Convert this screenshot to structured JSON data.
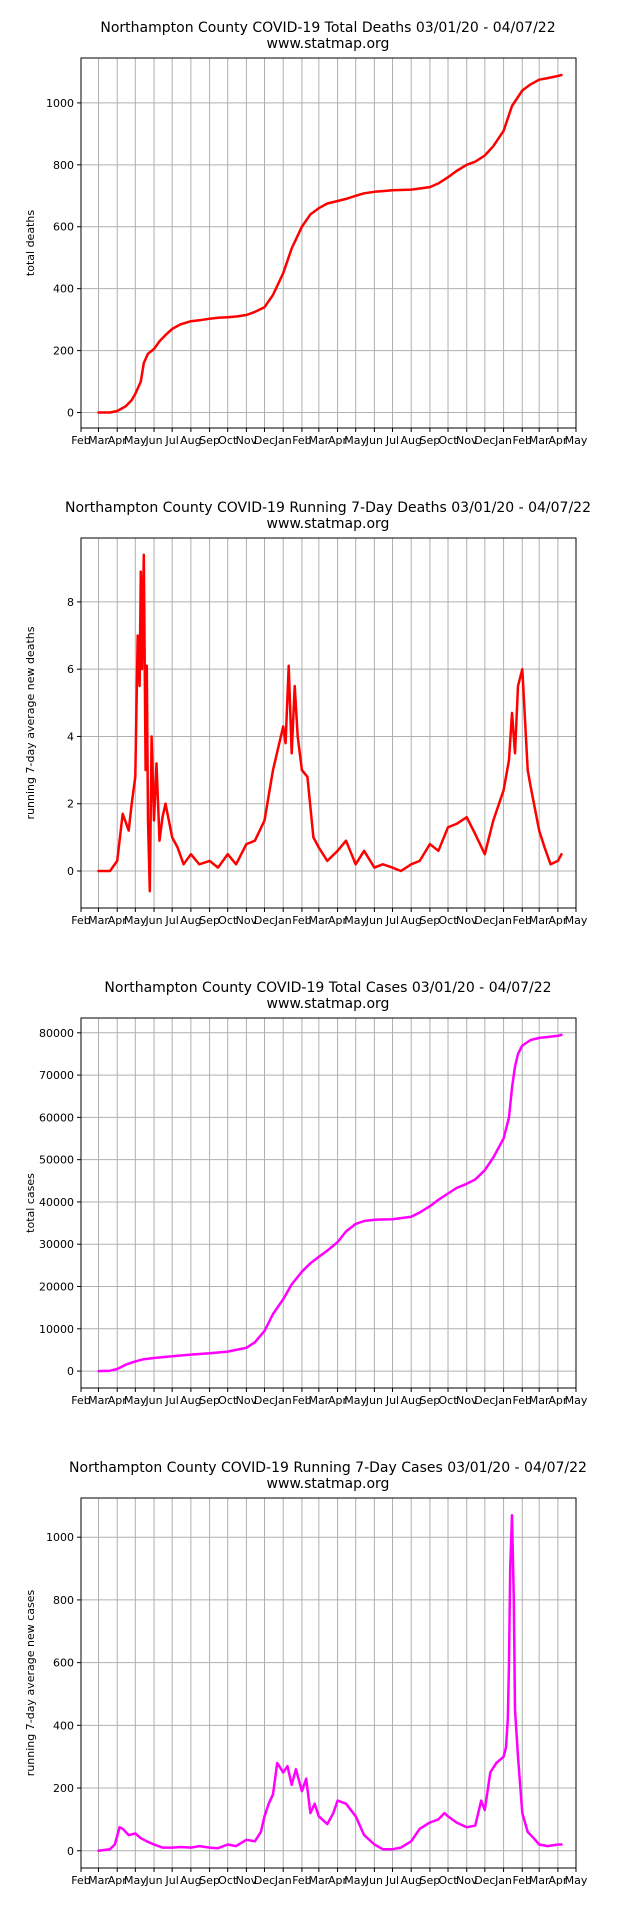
{
  "chart_data": [
    {
      "type": "line",
      "title": "Northampton County COVID-19 Total Deaths 03/01/20 - 04/07/22",
      "subtitle": "www.statmap.org",
      "xlabel": "",
      "ylabel": "total deaths",
      "color": "#ff0000",
      "grid": true,
      "xlim": [
        "2020-02-01",
        "2022-05-01"
      ],
      "ylim": [
        -50,
        1145
      ],
      "yticks": [
        0,
        200,
        400,
        600,
        800,
        1000
      ],
      "xticks": [
        "Feb",
        "Mar",
        "Apr",
        "May",
        "Jun",
        "Jul",
        "Aug",
        "Sep",
        "Oct",
        "Nov",
        "Dec",
        "Jan",
        "Feb",
        "Mar",
        "Apr",
        "May",
        "Jun",
        "Jul",
        "Aug",
        "Sep",
        "Oct",
        "Nov",
        "Dec",
        "Jan",
        "Feb",
        "Mar",
        "Apr",
        "May"
      ],
      "series": [
        {
          "x": [
            "2020-03-01",
            "2020-03-20",
            "2020-04-01",
            "2020-04-15",
            "2020-04-25",
            "2020-05-01",
            "2020-05-10",
            "2020-05-15",
            "2020-05-22",
            "2020-06-01",
            "2020-06-10",
            "2020-06-20",
            "2020-07-01",
            "2020-07-15",
            "2020-08-01",
            "2020-08-15",
            "2020-09-01",
            "2020-09-15",
            "2020-10-01",
            "2020-10-15",
            "2020-11-01",
            "2020-11-15",
            "2020-12-01",
            "2020-12-15",
            "2021-01-01",
            "2021-01-15",
            "2021-02-01",
            "2021-02-15",
            "2021-03-01",
            "2021-03-15",
            "2021-04-01",
            "2021-04-15",
            "2021-05-01",
            "2021-05-15",
            "2021-06-01",
            "2021-06-15",
            "2021-07-01",
            "2021-08-01",
            "2021-09-01",
            "2021-09-15",
            "2021-10-01",
            "2021-10-15",
            "2021-11-01",
            "2021-11-15",
            "2021-12-01",
            "2021-12-15",
            "2022-01-01",
            "2022-01-15",
            "2022-02-01",
            "2022-02-15",
            "2022-03-01",
            "2022-03-15",
            "2022-04-01",
            "2022-04-07"
          ],
          "y": [
            0,
            0,
            5,
            20,
            40,
            60,
            100,
            160,
            190,
            205,
            230,
            250,
            270,
            285,
            295,
            298,
            303,
            306,
            308,
            310,
            315,
            325,
            340,
            380,
            450,
            530,
            600,
            640,
            660,
            675,
            683,
            690,
            700,
            708,
            713,
            715,
            718,
            720,
            728,
            740,
            760,
            780,
            800,
            810,
            830,
            860,
            910,
            990,
            1040,
            1060,
            1075,
            1080,
            1087,
            1090
          ]
        }
      ]
    },
    {
      "type": "line",
      "title": "Northampton County COVID-19 Running 7-Day Deaths 03/01/20 - 04/07/22",
      "subtitle": "www.statmap.org",
      "xlabel": "",
      "ylabel": "running 7-day average new deaths",
      "color": "#ff0000",
      "grid": true,
      "xlim": [
        "2020-02-01",
        "2022-05-01"
      ],
      "ylim": [
        -1.1,
        9.9
      ],
      "yticks": [
        0,
        2,
        4,
        6,
        8
      ],
      "xticks": [
        "Feb",
        "Mar",
        "Apr",
        "May",
        "Jun",
        "Jul",
        "Aug",
        "Sep",
        "Oct",
        "Nov",
        "Dec",
        "Jan",
        "Feb",
        "Mar",
        "Apr",
        "May",
        "Jun",
        "Jul",
        "Aug",
        "Sep",
        "Oct",
        "Nov",
        "Dec",
        "Jan",
        "Feb",
        "Mar",
        "Apr",
        "May"
      ],
      "series": [
        {
          "x": [
            "2020-03-01",
            "2020-03-20",
            "2020-04-01",
            "2020-04-10",
            "2020-04-20",
            "2020-04-25",
            "2020-05-01",
            "2020-05-05",
            "2020-05-08",
            "2020-05-10",
            "2020-05-12",
            "2020-05-15",
            "2020-05-18",
            "2020-05-20",
            "2020-05-22",
            "2020-05-25",
            "2020-05-28",
            "2020-06-01",
            "2020-06-05",
            "2020-06-10",
            "2020-06-15",
            "2020-06-20",
            "2020-07-01",
            "2020-07-10",
            "2020-07-20",
            "2020-08-01",
            "2020-08-15",
            "2020-09-01",
            "2020-09-15",
            "2020-10-01",
            "2020-10-15",
            "2020-11-01",
            "2020-11-15",
            "2020-12-01",
            "2020-12-15",
            "2021-01-01",
            "2021-01-05",
            "2021-01-10",
            "2021-01-15",
            "2021-01-20",
            "2021-01-25",
            "2021-02-01",
            "2021-02-10",
            "2021-02-20",
            "2021-03-01",
            "2021-03-15",
            "2021-04-01",
            "2021-04-15",
            "2021-05-01",
            "2021-05-15",
            "2021-06-01",
            "2021-06-15",
            "2021-07-01",
            "2021-07-15",
            "2021-08-01",
            "2021-08-15",
            "2021-09-01",
            "2021-09-15",
            "2021-10-01",
            "2021-10-15",
            "2021-11-01",
            "2021-11-15",
            "2021-12-01",
            "2021-12-15",
            "2022-01-01",
            "2022-01-10",
            "2022-01-15",
            "2022-01-20",
            "2022-01-25",
            "2022-02-01",
            "2022-02-10",
            "2022-02-15",
            "2022-03-01",
            "2022-03-10",
            "2022-03-20",
            "2022-04-01",
            "2022-04-07"
          ],
          "y": [
            0,
            0,
            0.3,
            1.7,
            1.2,
            2.0,
            2.8,
            7.0,
            5.5,
            8.9,
            6.0,
            9.4,
            3.0,
            6.1,
            1.5,
            -0.6,
            4.0,
            1.5,
            3.2,
            0.9,
            1.6,
            2.0,
            1.0,
            0.7,
            0.2,
            0.5,
            0.2,
            0.3,
            0.1,
            0.5,
            0.2,
            0.8,
            0.9,
            1.5,
            3.0,
            4.3,
            3.8,
            6.1,
            3.5,
            5.5,
            4.0,
            3.0,
            2.8,
            1.0,
            0.7,
            0.3,
            0.6,
            0.9,
            0.2,
            0.6,
            0.1,
            0.2,
            0.1,
            0.0,
            0.2,
            0.3,
            0.8,
            0.6,
            1.3,
            1.4,
            1.6,
            1.1,
            0.5,
            1.5,
            2.4,
            3.3,
            4.7,
            3.5,
            5.5,
            6.0,
            3.0,
            2.5,
            1.2,
            0.7,
            0.2,
            0.3,
            0.5
          ]
        }
      ]
    },
    {
      "type": "line",
      "title": "Northampton County COVID-19 Total Cases 03/01/20 - 04/07/22",
      "subtitle": "www.statmap.org",
      "xlabel": "",
      "ylabel": "total cases",
      "color": "#ff00ff",
      "grid": true,
      "xlim": [
        "2020-02-01",
        "2022-05-01"
      ],
      "ylim": [
        -4000,
        83500
      ],
      "yticks": [
        0,
        10000,
        20000,
        30000,
        40000,
        50000,
        60000,
        70000,
        80000
      ],
      "xticks": [
        "Feb",
        "Mar",
        "Apr",
        "May",
        "Jun",
        "Jul",
        "Aug",
        "Sep",
        "Oct",
        "Nov",
        "Dec",
        "Jan",
        "Feb",
        "Mar",
        "Apr",
        "May",
        "Jun",
        "Jul",
        "Aug",
        "Sep",
        "Oct",
        "Nov",
        "Dec",
        "Jan",
        "Feb",
        "Mar",
        "Apr",
        "May"
      ],
      "series": [
        {
          "x": [
            "2020-03-01",
            "2020-03-20",
            "2020-04-01",
            "2020-04-15",
            "2020-05-01",
            "2020-05-15",
            "2020-06-01",
            "2020-07-01",
            "2020-08-01",
            "2020-09-01",
            "2020-10-01",
            "2020-10-15",
            "2020-11-01",
            "2020-11-15",
            "2020-12-01",
            "2020-12-15",
            "2021-01-01",
            "2021-01-15",
            "2021-02-01",
            "2021-02-15",
            "2021-03-01",
            "2021-03-15",
            "2021-04-01",
            "2021-04-15",
            "2021-05-01",
            "2021-05-15",
            "2021-06-01",
            "2021-07-01",
            "2021-08-01",
            "2021-08-15",
            "2021-09-01",
            "2021-09-15",
            "2021-10-01",
            "2021-10-15",
            "2021-11-01",
            "2021-11-15",
            "2021-12-01",
            "2021-12-15",
            "2022-01-01",
            "2022-01-10",
            "2022-01-15",
            "2022-01-20",
            "2022-01-25",
            "2022-02-01",
            "2022-02-15",
            "2022-03-01",
            "2022-03-15",
            "2022-04-01",
            "2022-04-07"
          ],
          "y": [
            0,
            100,
            500,
            1500,
            2300,
            2800,
            3100,
            3500,
            3900,
            4200,
            4600,
            5000,
            5500,
            6800,
            9500,
            13500,
            17000,
            20500,
            23500,
            25500,
            27000,
            28500,
            30500,
            33000,
            34800,
            35500,
            35800,
            35900,
            36500,
            37500,
            39000,
            40500,
            42000,
            43300,
            44300,
            45300,
            47500,
            50500,
            55000,
            60000,
            67000,
            72000,
            75000,
            77000,
            78300,
            78800,
            79000,
            79300,
            79500
          ]
        }
      ]
    },
    {
      "type": "line",
      "title": "Northampton County COVID-19 Running 7-Day Cases 03/01/20 - 04/07/22",
      "subtitle": "www.statmap.org",
      "xlabel": "",
      "ylabel": "running 7-day average new cases",
      "color": "#ff00ff",
      "grid": true,
      "xlim": [
        "2020-02-01",
        "2022-05-01"
      ],
      "ylim": [
        -55,
        1125
      ],
      "yticks": [
        0,
        200,
        400,
        600,
        800,
        1000
      ],
      "xticks": [
        "Feb",
        "Mar",
        "Apr",
        "May",
        "Jun",
        "Jul",
        "Aug",
        "Sep",
        "Oct",
        "Nov",
        "Dec",
        "Jan",
        "Feb",
        "Mar",
        "Apr",
        "May",
        "Jun",
        "Jul",
        "Aug",
        "Sep",
        "Oct",
        "Nov",
        "Dec",
        "Jan",
        "Feb",
        "Mar",
        "Apr",
        "May"
      ],
      "series": [
        {
          "x": [
            "2020-03-01",
            "2020-03-20",
            "2020-03-28",
            "2020-04-05",
            "2020-04-10",
            "2020-04-20",
            "2020-05-01",
            "2020-05-10",
            "2020-05-20",
            "2020-06-01",
            "2020-06-15",
            "2020-07-01",
            "2020-07-15",
            "2020-08-01",
            "2020-08-15",
            "2020-09-01",
            "2020-09-15",
            "2020-10-01",
            "2020-10-15",
            "2020-11-01",
            "2020-11-15",
            "2020-11-25",
            "2020-12-01",
            "2020-12-08",
            "2020-12-15",
            "2020-12-22",
            "2021-01-01",
            "2021-01-08",
            "2021-01-15",
            "2021-01-22",
            "2021-02-01",
            "2021-02-08",
            "2021-02-15",
            "2021-02-22",
            "2021-03-01",
            "2021-03-15",
            "2021-03-25",
            "2021-04-01",
            "2021-04-15",
            "2021-05-01",
            "2021-05-15",
            "2021-06-01",
            "2021-06-15",
            "2021-07-01",
            "2021-07-15",
            "2021-08-01",
            "2021-08-15",
            "2021-09-01",
            "2021-09-15",
            "2021-09-25",
            "2021-10-01",
            "2021-10-15",
            "2021-11-01",
            "2021-11-15",
            "2021-11-25",
            "2021-12-01",
            "2021-12-10",
            "2021-12-20",
            "2022-01-01",
            "2022-01-05",
            "2022-01-08",
            "2022-01-10",
            "2022-01-12",
            "2022-01-15",
            "2022-01-18",
            "2022-01-20",
            "2022-01-25",
            "2022-02-01",
            "2022-02-10",
            "2022-02-20",
            "2022-03-01",
            "2022-03-15",
            "2022-04-01",
            "2022-04-07"
          ],
          "y": [
            0,
            5,
            20,
            75,
            70,
            50,
            55,
            40,
            30,
            20,
            10,
            10,
            12,
            10,
            15,
            10,
            8,
            20,
            15,
            35,
            30,
            60,
            110,
            150,
            180,
            280,
            250,
            270,
            210,
            260,
            190,
            230,
            120,
            150,
            110,
            85,
            120,
            160,
            150,
            110,
            50,
            20,
            5,
            5,
            10,
            30,
            70,
            90,
            100,
            120,
            110,
            90,
            75,
            80,
            160,
            130,
            250,
            280,
            300,
            330,
            420,
            600,
            900,
            1070,
            800,
            450,
            300,
            120,
            60,
            40,
            20,
            15,
            20,
            20
          ]
        }
      ]
    }
  ]
}
